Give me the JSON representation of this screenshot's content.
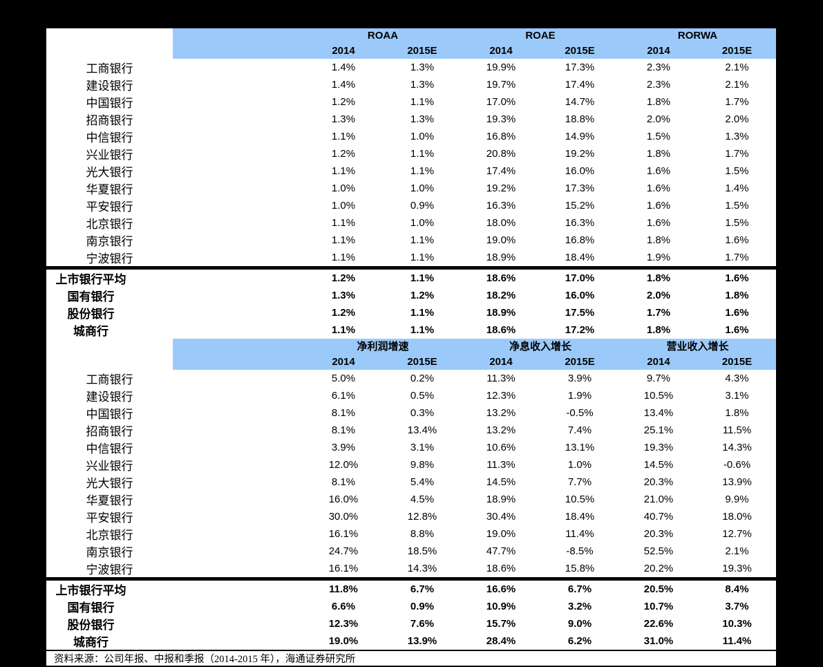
{
  "colors": {
    "page_bg": "#000000",
    "panel_bg": "#FFFFFF",
    "header_bg": "#9BCAFA",
    "text": "#000000",
    "divider": "#000000"
  },
  "table1": {
    "title_groups": [
      "ROAA",
      "ROAE",
      "RORWA"
    ],
    "years": [
      "2014",
      "2015E",
      "2014",
      "2015E",
      "2014",
      "2015E"
    ],
    "rows": [
      {
        "label": "工商银行",
        "values": [
          "1.4%",
          "1.3%",
          "19.9%",
          "17.3%",
          "2.3%",
          "2.1%"
        ]
      },
      {
        "label": "建设银行",
        "values": [
          "1.4%",
          "1.3%",
          "19.7%",
          "17.4%",
          "2.3%",
          "2.1%"
        ]
      },
      {
        "label": "中国银行",
        "values": [
          "1.2%",
          "1.1%",
          "17.0%",
          "14.7%",
          "1.8%",
          "1.7%"
        ]
      },
      {
        "label": "招商银行",
        "values": [
          "1.3%",
          "1.3%",
          "19.3%",
          "18.8%",
          "2.0%",
          "2.0%"
        ]
      },
      {
        "label": "中信银行",
        "values": [
          "1.1%",
          "1.0%",
          "16.8%",
          "14.9%",
          "1.5%",
          "1.3%"
        ]
      },
      {
        "label": "兴业银行",
        "values": [
          "1.2%",
          "1.1%",
          "20.8%",
          "19.2%",
          "1.8%",
          "1.7%"
        ]
      },
      {
        "label": "光大银行",
        "values": [
          "1.1%",
          "1.1%",
          "17.4%",
          "16.0%",
          "1.6%",
          "1.5%"
        ]
      },
      {
        "label": "华夏银行",
        "values": [
          "1.0%",
          "1.0%",
          "19.2%",
          "17.3%",
          "1.6%",
          "1.4%"
        ]
      },
      {
        "label": "平安银行",
        "values": [
          "1.0%",
          "0.9%",
          "16.3%",
          "15.2%",
          "1.6%",
          "1.5%"
        ]
      },
      {
        "label": "北京银行",
        "values": [
          "1.1%",
          "1.0%",
          "18.0%",
          "16.3%",
          "1.6%",
          "1.5%"
        ]
      },
      {
        "label": "南京银行",
        "values": [
          "1.1%",
          "1.1%",
          "19.0%",
          "16.8%",
          "1.8%",
          "1.6%"
        ]
      },
      {
        "label": "宁波银行",
        "values": [
          "1.1%",
          "1.1%",
          "18.9%",
          "18.4%",
          "1.9%",
          "1.7%"
        ]
      }
    ],
    "summary": [
      {
        "label": "上市银行平均",
        "values": [
          "1.2%",
          "1.1%",
          "18.6%",
          "17.0%",
          "1.8%",
          "1.6%"
        ]
      },
      {
        "label": "国有银行",
        "values": [
          "1.3%",
          "1.2%",
          "18.2%",
          "16.0%",
          "2.0%",
          "1.8%"
        ]
      },
      {
        "label": "股份银行",
        "values": [
          "1.2%",
          "1.1%",
          "18.9%",
          "17.5%",
          "1.7%",
          "1.6%"
        ]
      },
      {
        "label": "城商行",
        "values": [
          "1.1%",
          "1.1%",
          "18.6%",
          "17.2%",
          "1.8%",
          "1.6%"
        ]
      }
    ]
  },
  "table2": {
    "title_groups": [
      "净利润增速",
      "净息收入增长",
      "营业收入增长"
    ],
    "years": [
      "2014",
      "2015E",
      "2014",
      "2015E",
      "2014",
      "2015E"
    ],
    "rows": [
      {
        "label": "工商银行",
        "values": [
          "5.0%",
          "0.2%",
          "11.3%",
          "3.9%",
          "9.7%",
          "4.3%"
        ]
      },
      {
        "label": "建设银行",
        "values": [
          "6.1%",
          "0.5%",
          "12.3%",
          "1.9%",
          "10.5%",
          "3.1%"
        ]
      },
      {
        "label": "中国银行",
        "values": [
          "8.1%",
          "0.3%",
          "13.2%",
          "-0.5%",
          "13.4%",
          "1.8%"
        ]
      },
      {
        "label": "招商银行",
        "values": [
          "8.1%",
          "13.4%",
          "13.2%",
          "7.4%",
          "25.1%",
          "11.5%"
        ]
      },
      {
        "label": "中信银行",
        "values": [
          "3.9%",
          "3.1%",
          "10.6%",
          "13.1%",
          "19.3%",
          "14.3%"
        ]
      },
      {
        "label": "兴业银行",
        "values": [
          "12.0%",
          "9.8%",
          "11.3%",
          "1.0%",
          "14.5%",
          "-0.6%"
        ]
      },
      {
        "label": "光大银行",
        "values": [
          "8.1%",
          "5.4%",
          "14.5%",
          "7.7%",
          "20.3%",
          "13.9%"
        ]
      },
      {
        "label": "华夏银行",
        "values": [
          "16.0%",
          "4.5%",
          "18.9%",
          "10.5%",
          "21.0%",
          "9.9%"
        ]
      },
      {
        "label": "平安银行",
        "values": [
          "30.0%",
          "12.8%",
          "30.4%",
          "18.4%",
          "40.7%",
          "18.0%"
        ]
      },
      {
        "label": "北京银行",
        "values": [
          "16.1%",
          "8.8%",
          "19.0%",
          "11.4%",
          "20.3%",
          "12.7%"
        ]
      },
      {
        "label": "南京银行",
        "values": [
          "24.7%",
          "18.5%",
          "47.7%",
          "-8.5%",
          "52.5%",
          "2.1%"
        ]
      },
      {
        "label": "宁波银行",
        "values": [
          "16.1%",
          "14.3%",
          "18.6%",
          "15.8%",
          "20.2%",
          "19.3%"
        ]
      }
    ],
    "summary": [
      {
        "label": "上市银行平均",
        "values": [
          "11.8%",
          "6.7%",
          "16.6%",
          "6.7%",
          "20.5%",
          "8.4%"
        ]
      },
      {
        "label": "国有银行",
        "values": [
          "6.6%",
          "0.9%",
          "10.9%",
          "3.2%",
          "10.7%",
          "3.7%"
        ]
      },
      {
        "label": "股份银行",
        "values": [
          "12.3%",
          "7.6%",
          "15.7%",
          "9.0%",
          "22.6%",
          "10.3%"
        ]
      },
      {
        "label": "城商行",
        "values": [
          "19.0%",
          "13.9%",
          "28.4%",
          "6.2%",
          "31.0%",
          "11.4%"
        ]
      }
    ]
  },
  "footer": {
    "source": "资料来源：公司年报、中报和季报（2014-2015 年），海通证券研究所"
  }
}
